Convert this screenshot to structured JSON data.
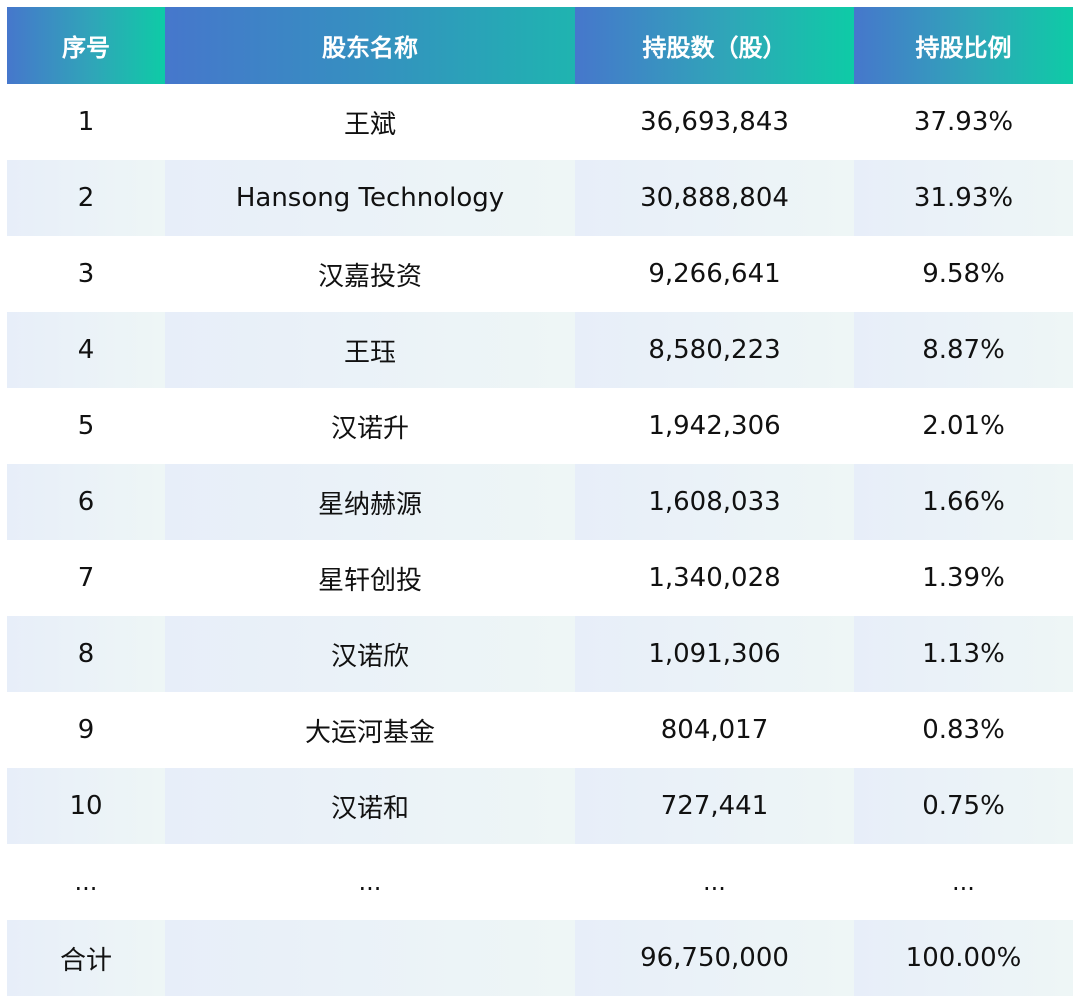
{
  "header": {
    "col_index": "序号",
    "col_name": "股东名称",
    "col_shares": "持股数（股）",
    "col_ratio": "持股比例"
  },
  "rows": [
    {
      "index": "1",
      "name": "王斌",
      "shares": "36,693,843",
      "ratio": "37.93%"
    },
    {
      "index": "2",
      "name": "Hansong Technology",
      "shares": "30,888,804",
      "ratio": "31.93%"
    },
    {
      "index": "3",
      "name": "汉嘉投资",
      "shares": "9,266,641",
      "ratio": "9.58%"
    },
    {
      "index": "4",
      "name": "王珏",
      "shares": "8,580,223",
      "ratio": "8.87%"
    },
    {
      "index": "5",
      "name": "汉诺升",
      "shares": "1,942,306",
      "ratio": "2.01%"
    },
    {
      "index": "6",
      "name": "星纳赫源",
      "shares": "1,608,033",
      "ratio": "1.66%"
    },
    {
      "index": "7",
      "name": "星轩创投",
      "shares": "1,340,028",
      "ratio": "1.39%"
    },
    {
      "index": "8",
      "name": "汉诺欣",
      "shares": "1,091,306",
      "ratio": "1.13%"
    },
    {
      "index": "9",
      "name": "大运河基金",
      "shares": "804,017",
      "ratio": "0.83%"
    },
    {
      "index": "10",
      "name": "汉诺和",
      "shares": "727,441",
      "ratio": "0.75%"
    }
  ],
  "ellipsis": {
    "index": "...",
    "name": "...",
    "shares": "...",
    "ratio": "..."
  },
  "total": {
    "label": "合计",
    "name": "",
    "shares": "96,750,000",
    "ratio": "100.00%"
  }
}
